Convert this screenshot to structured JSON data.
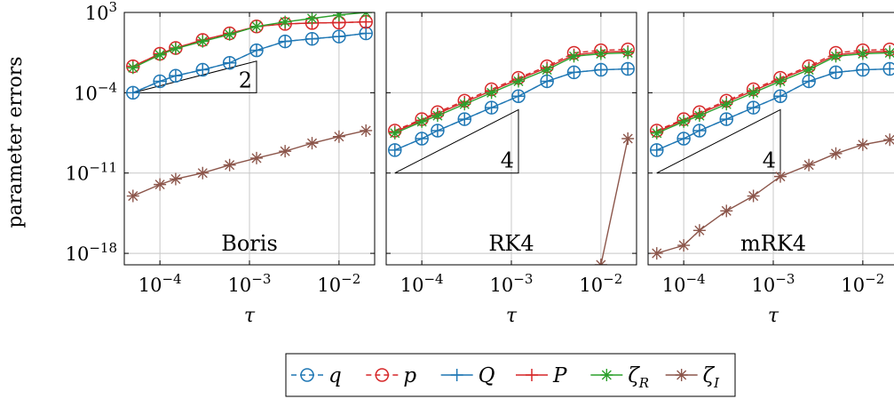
{
  "chart_data": {
    "type": "line",
    "log_x": true,
    "log_y": true,
    "ylabel": "parameter errors",
    "xlabel": "τ",
    "xlim": [
      4e-05,
      0.025
    ],
    "ylim": [
      1e-19,
      1000.0
    ],
    "grid": true,
    "legend_position": "bottom-center",
    "yticks": [
      {
        "value": 1000.0,
        "base": "10",
        "exp": "3"
      },
      {
        "value": 0.0001,
        "base": "10",
        "exp": "−4"
      },
      {
        "value": 1e-11,
        "base": "10",
        "exp": "−11"
      },
      {
        "value": 1e-18,
        "base": "10",
        "exp": "−18"
      }
    ],
    "xticks": [
      {
        "value": 0.0001,
        "base": "10",
        "exp": "−4"
      },
      {
        "value": 0.001,
        "base": "10",
        "exp": "−3"
      },
      {
        "value": 0.01,
        "base": "10",
        "exp": "−2"
      }
    ],
    "x": [
      5e-05,
      0.0001,
      0.00015,
      0.0003,
      0.0006,
      0.0012,
      0.0025,
      0.005,
      0.01,
      0.02
    ],
    "series_styles": [
      {
        "key": "q",
        "name": "q",
        "color": "#1f77b4",
        "dash": "6,4",
        "marker": "circle"
      },
      {
        "key": "p",
        "name": "p",
        "color": "#d62728",
        "dash": "6,4",
        "marker": "circle"
      },
      {
        "key": "Q",
        "name": "Q",
        "color": "#1f77b4",
        "dash": "",
        "marker": "plus"
      },
      {
        "key": "P",
        "name": "P",
        "color": "#d62728",
        "dash": "",
        "marker": "plus"
      },
      {
        "key": "zR",
        "name": "ζ",
        "sub": "R",
        "color": "#2ca02c",
        "dash": "",
        "marker": "star"
      },
      {
        "key": "zI",
        "name": "ζ",
        "sub": "I",
        "color": "#8c564b",
        "dash": "",
        "marker": "star"
      }
    ],
    "panels": [
      {
        "label": "Boris",
        "slope_label": "2",
        "slope_triangle": {
          "x1": 5e-05,
          "x2": 0.0012,
          "y_low": 0.0001,
          "order": 2
        },
        "series": {
          "q": [
            0.0001,
            0.001,
            0.003,
            0.01,
            0.04,
            0.5,
            3,
            5,
            8,
            15
          ],
          "p": [
            0.02,
            0.25,
            0.8,
            4,
            15,
            60,
            100,
            120,
            130,
            150
          ],
          "Q": [
            0.0001,
            0.001,
            0.003,
            0.01,
            0.04,
            0.5,
            3,
            5,
            8,
            15
          ],
          "P": [
            0.02,
            0.25,
            0.8,
            4,
            15,
            60,
            100,
            120,
            130,
            150
          ],
          "zR": [
            0.015,
            0.2,
            0.7,
            3,
            12,
            60,
            150,
            300,
            600,
            1000
          ],
          "zI": [
            1e-13,
            1e-12,
            3e-12,
            1e-11,
            5e-11,
            2e-10,
            8e-10,
            4e-09,
            1.5e-08,
            5e-08
          ]
        }
      },
      {
        "label": "RK4",
        "slope_label": "4",
        "slope_triangle": {
          "x1": 5e-05,
          "x2": 0.0012,
          "y_low": 1e-11,
          "order": 4
        },
        "series": {
          "q": [
            1e-09,
            1e-08,
            5e-08,
            5e-07,
            5e-06,
            5e-05,
            0.001,
            0.006,
            0.01,
            0.012
          ],
          "p": [
            5e-08,
            5e-07,
            2e-06,
            2e-05,
            0.0002,
            0.002,
            0.02,
            0.3,
            0.5,
            0.6
          ],
          "Q": [
            1e-09,
            1e-08,
            5e-08,
            5e-07,
            5e-06,
            5e-05,
            0.001,
            0.006,
            0.01,
            0.012
          ],
          "P": [
            4e-08,
            4e-07,
            1.5e-06,
            1.5e-05,
            0.00015,
            0.0015,
            0.015,
            0.2,
            0.35,
            0.4
          ],
          "zR": [
            3e-08,
            3e-07,
            1e-06,
            1e-05,
            0.0001,
            0.001,
            0.01,
            0.15,
            0.25,
            0.3
          ],
          "zI": [
            null,
            null,
            null,
            null,
            null,
            null,
            null,
            null,
            1e-19,
            1e-08
          ]
        }
      },
      {
        "label": "mRK4",
        "slope_label": "4",
        "slope_triangle": {
          "x1": 5e-05,
          "x2": 0.0012,
          "y_low": 1e-11,
          "order": 4
        },
        "series": {
          "q": [
            1e-09,
            1e-08,
            5e-08,
            5e-07,
            5e-06,
            5e-05,
            0.001,
            0.006,
            0.01,
            0.012
          ],
          "p": [
            5e-08,
            5e-07,
            2e-06,
            2e-05,
            0.0002,
            0.002,
            0.02,
            0.3,
            0.5,
            0.6
          ],
          "Q": [
            1e-09,
            1e-08,
            5e-08,
            5e-07,
            5e-06,
            5e-05,
            0.001,
            0.006,
            0.01,
            0.012
          ],
          "P": [
            4e-08,
            4e-07,
            1.5e-06,
            1.5e-05,
            0.00015,
            0.0015,
            0.015,
            0.2,
            0.35,
            0.4
          ],
          "zR": [
            3e-08,
            3e-07,
            1e-06,
            1e-05,
            0.0001,
            0.001,
            0.01,
            0.15,
            0.25,
            0.3
          ],
          "zI": [
            1e-18,
            5e-18,
            1e-16,
            5e-15,
            1e-13,
            5e-12,
            5e-11,
            5e-10,
            3e-09,
            8e-09
          ]
        }
      }
    ]
  }
}
